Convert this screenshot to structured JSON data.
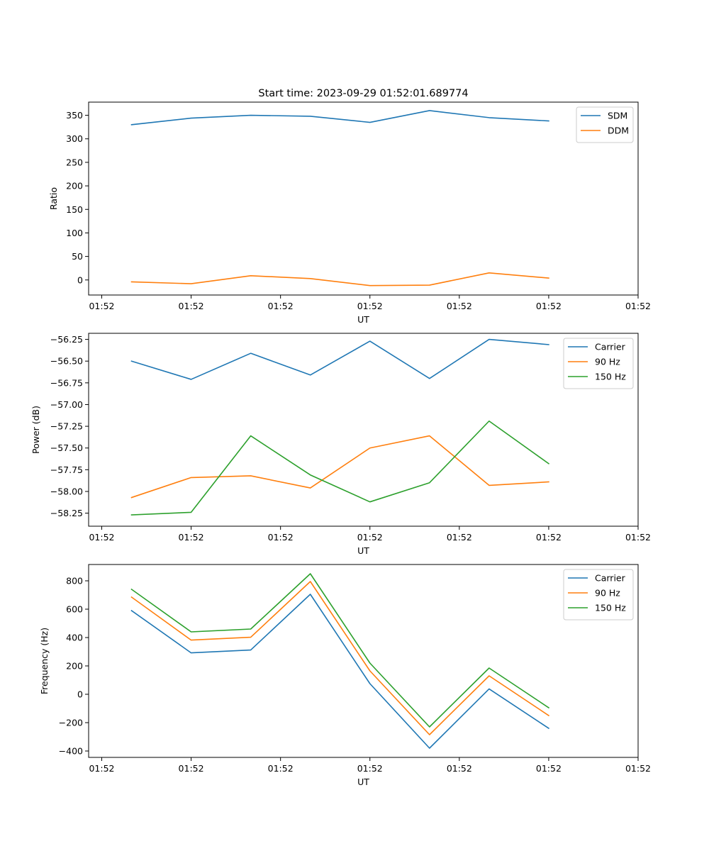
{
  "figure": {
    "title": "Start time: 2023-09-29 01:52:01.689774"
  },
  "colors": {
    "blue": "#1f77b4",
    "orange": "#ff7f0e",
    "green": "#2ca02c",
    "axis": "#000000",
    "legend_border": "#cccccc"
  },
  "chart_data": [
    {
      "type": "line",
      "title": "Start time: 2023-09-29 01:52:01.689774",
      "xlabel": "UT",
      "ylabel": "Ratio",
      "x_index": [
        0,
        1,
        2,
        3,
        4,
        5,
        6,
        7
      ],
      "xlim": [
        -0.72,
        8.5
      ],
      "x_ticks": [
        -0.5,
        1.0,
        2.5,
        4.0,
        5.5,
        7.0,
        8.5
      ],
      "x_tick_labels": [
        "01:52",
        "01:52",
        "01:52",
        "01:52",
        "01:52",
        "01:52",
        "01:52"
      ],
      "ylim": [
        -32,
        378
      ],
      "y_ticks": [
        0,
        50,
        100,
        150,
        200,
        250,
        300,
        350
      ],
      "y_tick_labels": [
        "0",
        "50",
        "100",
        "150",
        "200",
        "250",
        "300",
        "350"
      ],
      "legend_position": "top-right",
      "series": [
        {
          "name": "SDM",
          "color_key": "blue",
          "values": [
            330,
            344,
            350,
            348,
            335,
            360,
            345,
            338
          ]
        },
        {
          "name": "DDM",
          "color_key": "orange",
          "values": [
            -4,
            -8,
            9,
            3,
            -12,
            -11,
            15,
            4
          ]
        }
      ]
    },
    {
      "type": "line",
      "title": "",
      "xlabel": "UT",
      "ylabel": "Power (dB)",
      "x_index": [
        0,
        1,
        2,
        3,
        4,
        5,
        6,
        7
      ],
      "xlim": [
        -0.72,
        8.5
      ],
      "x_ticks": [
        -0.5,
        1.0,
        2.5,
        4.0,
        5.5,
        7.0,
        8.5
      ],
      "x_tick_labels": [
        "01:52",
        "01:52",
        "01:52",
        "01:52",
        "01:52",
        "01:52",
        "01:52"
      ],
      "ylim": [
        -58.4,
        -56.18
      ],
      "y_ticks": [
        -58.25,
        -58.0,
        -57.75,
        -57.5,
        -57.25,
        -57.0,
        -56.75,
        -56.5,
        -56.25
      ],
      "y_tick_labels": [
        "−58.25",
        "−58.00",
        "−57.75",
        "−57.50",
        "−57.25",
        "−57.00",
        "−56.75",
        "−56.50",
        "−56.25"
      ],
      "legend_position": "top-right",
      "series": [
        {
          "name": "Carrier",
          "color_key": "blue",
          "values": [
            -56.5,
            -56.71,
            -56.41,
            -56.66,
            -56.27,
            -56.7,
            -56.25,
            -56.31
          ]
        },
        {
          "name": "90 Hz",
          "color_key": "orange",
          "values": [
            -58.07,
            -57.84,
            -57.82,
            -57.96,
            -57.5,
            -57.36,
            -57.93,
            -57.89
          ]
        },
        {
          "name": "150 Hz",
          "color_key": "green",
          "values": [
            -58.27,
            -58.24,
            -57.36,
            -57.81,
            -58.12,
            -57.9,
            -57.19,
            -57.68
          ]
        }
      ]
    },
    {
      "type": "line",
      "title": "",
      "xlabel": "UT",
      "ylabel": "Frequency (Hz)",
      "x_index": [
        0,
        1,
        2,
        3,
        4,
        5,
        6,
        7
      ],
      "xlim": [
        -0.72,
        8.5
      ],
      "x_ticks": [
        -0.5,
        1.0,
        2.5,
        4.0,
        5.5,
        7.0,
        8.5
      ],
      "x_tick_labels": [
        "01:52",
        "01:52",
        "01:52",
        "01:52",
        "01:52",
        "01:52",
        "01:52"
      ],
      "ylim": [
        -445,
        915
      ],
      "y_ticks": [
        -400,
        -200,
        0,
        200,
        400,
        600,
        800
      ],
      "y_tick_labels": [
        "−400",
        "−200",
        "0",
        "200",
        "400",
        "600",
        "800"
      ],
      "legend_position": "top-right",
      "series": [
        {
          "name": "Carrier",
          "color_key": "blue",
          "values": [
            590,
            292,
            312,
            705,
            75,
            -380,
            38,
            -240
          ]
        },
        {
          "name": "90 Hz",
          "color_key": "orange",
          "values": [
            685,
            382,
            402,
            795,
            165,
            -285,
            130,
            -150
          ]
        },
        {
          "name": "150 Hz",
          "color_key": "green",
          "values": [
            740,
            440,
            460,
            850,
            220,
            -230,
            185,
            -95
          ]
        }
      ]
    }
  ]
}
